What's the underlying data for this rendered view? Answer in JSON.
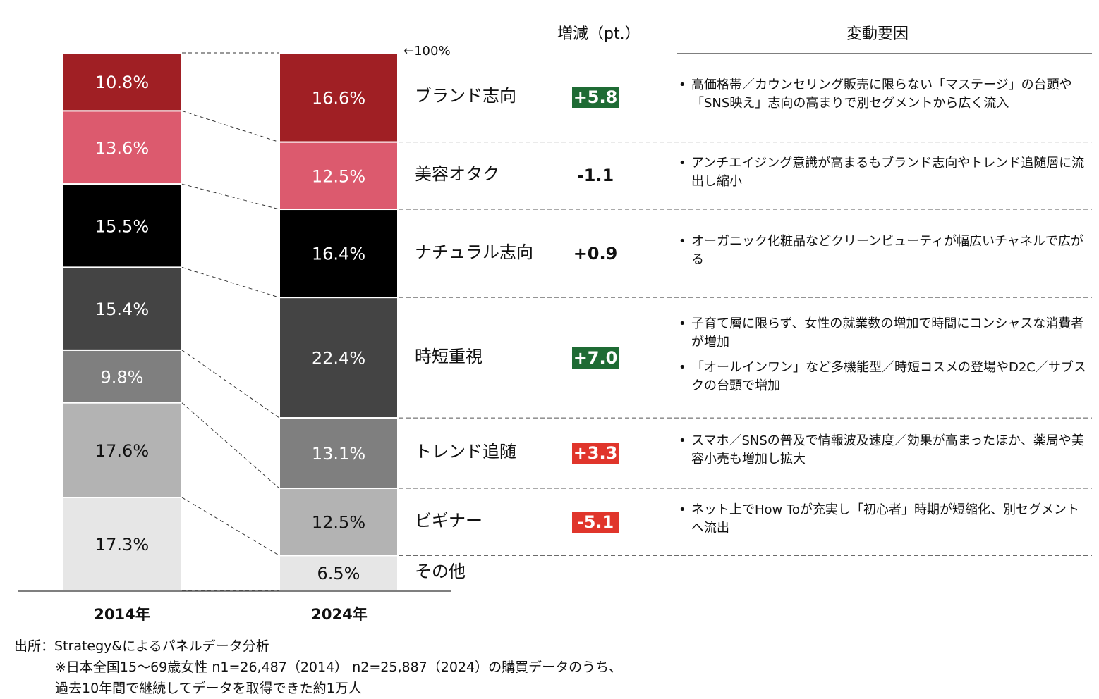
{
  "header": {
    "change_label": "増減（pt.）",
    "factor_label": "変動要因",
    "top_marker": "←100%"
  },
  "chart_data": {
    "type": "bar",
    "stacked": true,
    "categories": [
      "2014年",
      "2024年"
    ],
    "ylim": [
      0,
      100
    ],
    "series": [
      {
        "name": "ブランド志向",
        "values": [
          10.8,
          16.6
        ],
        "labels": [
          "10.8%",
          "16.6%"
        ],
        "color": "#a01f24",
        "text_color": "#ffffff"
      },
      {
        "name": "美容オタク",
        "values": [
          13.6,
          12.5
        ],
        "labels": [
          "13.6%",
          "12.5%"
        ],
        "color": "#dc5a6e",
        "text_color": "#ffffff"
      },
      {
        "name": "ナチュラル志向",
        "values": [
          15.5,
          16.4
        ],
        "labels": [
          "15.5%",
          "16.4%"
        ],
        "color": "#000000",
        "text_color": "#ffffff"
      },
      {
        "name": "時短重視",
        "values": [
          15.4,
          22.4
        ],
        "labels": [
          "15.4%",
          "22.4%"
        ],
        "color": "#444444",
        "text_color": "#ffffff"
      },
      {
        "name": "トレンド追随",
        "values": [
          9.8,
          13.1
        ],
        "labels": [
          "9.8%",
          "13.1%"
        ],
        "color": "#7f7f7f",
        "text_color": "#ffffff"
      },
      {
        "name": "ビギナー",
        "values": [
          17.6,
          12.5
        ],
        "labels": [
          "17.6%",
          "12.5%"
        ],
        "color": "#b3b3b3",
        "text_color": "#111111"
      },
      {
        "name": "その他",
        "values": [
          17.3,
          6.5
        ],
        "labels": [
          "17.3%",
          "6.5%"
        ],
        "color": "#e6e6e6",
        "text_color": "#111111"
      }
    ]
  },
  "segments": [
    {
      "name": "ブランド志向",
      "delta": "+5.8",
      "delta_style": "green",
      "factors": [
        "高価格帯／カウンセリング販売に限らない「マステージ」の台頭や「SNS映え」志向の高まりで別セグメントから広く流入"
      ]
    },
    {
      "name": "美容オタク",
      "delta": "-1.1",
      "delta_style": "plain",
      "factors": [
        "アンチエイジング意識が高まるもブランド志向やトレンド追随層に流出し縮小"
      ]
    },
    {
      "name": "ナチュラル志向",
      "delta": "+0.9",
      "delta_style": "plain",
      "factors": [
        "オーガニック化粧品などクリーンビューティが幅広いチャネルで広がる"
      ]
    },
    {
      "name": "時短重視",
      "delta": "+7.0",
      "delta_style": "green",
      "factors": [
        "子育て層に限らず、女性の就業数の増加で時間にコンシャスな消費者が増加",
        "「オールインワン」など多機能型／時短コスメの登場やD2C／サブスクの台頭で増加"
      ]
    },
    {
      "name": "トレンド追随",
      "delta": "+3.3",
      "delta_style": "red",
      "factors": [
        "スマホ／SNSの普及で情報波及速度／効果が高まったほか、薬局や美容小売も増加し拡大"
      ]
    },
    {
      "name": "ビギナー",
      "delta": "-5.1",
      "delta_style": "red",
      "factors": [
        "ネット上でHow Toが充実し「初心者」時期が短縮化、別セグメントへ流出"
      ]
    },
    {
      "name": "その他",
      "delta": "",
      "delta_style": "none",
      "factors": []
    }
  ],
  "colors": {
    "green": "#1e6b34",
    "red": "#e0352b",
    "rule": "#555555"
  },
  "source": {
    "line1": "出所：Strategy&によるパネルデータ分析",
    "line2": "※日本全国15～69歳女性 n1=26,487（2014） n2=25,887（2024）の購買データのうち、",
    "line3": "過去10年間で継続してデータを取得できた約1万人"
  }
}
